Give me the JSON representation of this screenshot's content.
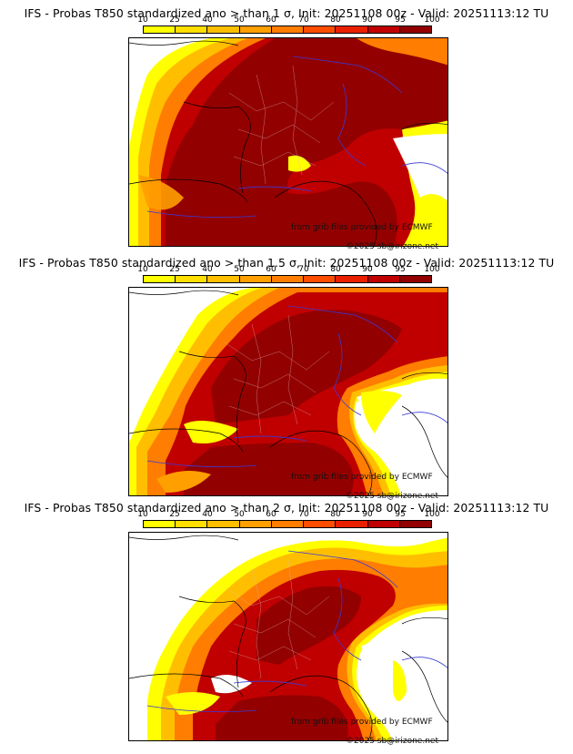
{
  "colorbar": {
    "ticks": [
      "10",
      "25",
      "40",
      "50",
      "60",
      "70",
      "80",
      "90",
      "95",
      "100"
    ],
    "colors": [
      "#ffff00",
      "#ffde00",
      "#ffbf00",
      "#ff9f00",
      "#ff7d00",
      "#ff4d00",
      "#e82000",
      "#c00000",
      "#930000"
    ]
  },
  "panels": [
    {
      "title": "IFS - Probas T850  standardized ano > than 1 σ, Init: 20251108 00z - Valid: 20251113:12 TU"
    },
    {
      "title": "IFS - Probas T850  standardized ano > than 1.5 σ, Init: 20251108 00z - Valid: 20251113:12 TU"
    },
    {
      "title": "IFS - Probas T850  standardized ano > than 2 σ, Init: 20251108 00z - Valid: 20251113:12 TU"
    }
  ],
  "credits": {
    "source": "from grib files provided by ECMWF",
    "copyright": "©2025 sb@irizone.net"
  }
}
